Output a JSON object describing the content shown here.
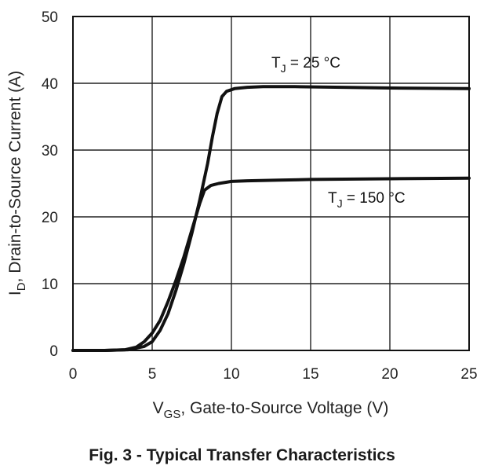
{
  "chart_data": {
    "type": "line",
    "title": "",
    "xlabel": {
      "main": "V",
      "sub": "GS",
      "rest": ", Gate-to-Source Voltage (V)"
    },
    "ylabel": {
      "main": "I",
      "sub": "D",
      "rest": ", Drain-to-Source Current (A)"
    },
    "xlim": [
      0,
      25
    ],
    "ylim": [
      0,
      50
    ],
    "xticks": [
      0,
      5,
      10,
      15,
      20,
      25
    ],
    "yticks": [
      0,
      10,
      20,
      30,
      40,
      50
    ],
    "grid": true,
    "series": [
      {
        "name": "T_J = 25 °C",
        "label": {
          "main": "T",
          "sub": "J",
          "rest": " = 25 °C"
        },
        "x": [
          0,
          2,
          3.5,
          4.5,
          5,
          5.5,
          6,
          6.5,
          7,
          7.5,
          8,
          8.5,
          8.8,
          9.1,
          9.4,
          9.7,
          10.2,
          11,
          12,
          14,
          17,
          20,
          25
        ],
        "y": [
          0,
          0,
          0.1,
          0.6,
          1.3,
          3,
          5.5,
          9,
          13,
          17.5,
          22.5,
          28,
          32,
          35.5,
          38,
          38.8,
          39.2,
          39.4,
          39.5,
          39.5,
          39.4,
          39.3,
          39.2
        ]
      },
      {
        "name": "T_J = 150 °C",
        "label": {
          "main": "T",
          "sub": "J",
          "rest": " = 150 °C"
        },
        "x": [
          0,
          2,
          3.3,
          4,
          4.5,
          5,
          5.5,
          6,
          6.5,
          7,
          7.5,
          8,
          8.3,
          8.7,
          9.2,
          10,
          11,
          13,
          15,
          20,
          25
        ],
        "y": [
          0,
          0,
          0.1,
          0.5,
          1.3,
          2.6,
          4.5,
          7.3,
          10.5,
          14,
          18,
          22,
          24,
          24.7,
          25,
          25.3,
          25.4,
          25.5,
          25.6,
          25.7,
          25.8
        ]
      }
    ]
  },
  "caption": "Fig. 3 - Typical Transfer Characteristics"
}
